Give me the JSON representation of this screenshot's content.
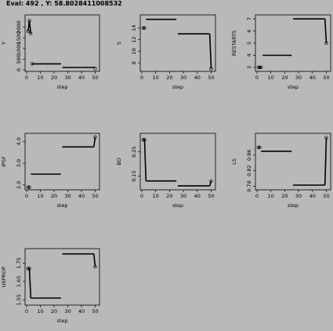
{
  "status_text": "Eval:  492 , Y:  58.8028411008532",
  "chart_data": [
    {
      "type": "scatter",
      "ylabel": "Y",
      "xlabel": "step",
      "xlim": [
        0,
        52
      ],
      "xticks": [
        0,
        10,
        20,
        30,
        40,
        50
      ],
      "ylim": [
        0,
        2500
      ],
      "yticks": [
        0,
        500,
        1000,
        1500,
        2000
      ],
      "ytick_labels": [
        "0",
        "500",
        "1000",
        "1500",
        "2000"
      ],
      "line": true,
      "segments": [
        {
          "x": [
            1,
            2,
            3
          ],
          "y": [
            1800,
            2300,
            1700
          ]
        },
        {
          "x": [
            4,
            25
          ],
          "y": [
            280,
            280
          ]
        },
        {
          "x": [
            26,
            50
          ],
          "y": [
            110,
            110
          ]
        }
      ],
      "points": {
        "x": [
          1,
          2,
          3,
          4,
          50
        ],
        "y": [
          1800,
          2300,
          1700,
          290,
          60
        ]
      }
    },
    {
      "type": "scatter",
      "ylabel": "S",
      "xlabel": "step",
      "xlim": [
        0,
        52
      ],
      "xticks": [
        0,
        10,
        20,
        30,
        40,
        50
      ],
      "ylim": [
        6.8,
        16
      ],
      "yticks": [
        8,
        10,
        12,
        14
      ],
      "ytick_labels": [
        "8",
        "10",
        "12",
        "14"
      ],
      "line": true,
      "segments": [
        {
          "x": [
            1,
            2
          ],
          "y": [
            14,
            14
          ]
        },
        {
          "x": [
            3,
            25
          ],
          "y": [
            15.5,
            15.5
          ]
        },
        {
          "x": [
            26,
            49
          ],
          "y": [
            13,
            13
          ]
        },
        {
          "x": [
            49,
            50
          ],
          "y": [
            13,
            7
          ]
        }
      ],
      "points": {
        "x": [
          1,
          2,
          50
        ],
        "y": [
          14,
          14,
          7
        ]
      }
    },
    {
      "type": "scatter",
      "ylabel": "RESTARTS",
      "xlabel": "step",
      "xlim": [
        0,
        52
      ],
      "xticks": [
        0,
        10,
        20,
        30,
        40,
        50
      ],
      "ylim": [
        2.8,
        7.2
      ],
      "yticks": [
        3,
        4,
        5,
        6,
        7
      ],
      "ytick_labels": [
        "3",
        "4",
        "5",
        "6",
        "7"
      ],
      "line": true,
      "segments": [
        {
          "x": [
            1,
            3
          ],
          "y": [
            3,
            3
          ]
        },
        {
          "x": [
            4,
            25
          ],
          "y": [
            4,
            4
          ]
        },
        {
          "x": [
            26,
            49
          ],
          "y": [
            7,
            7
          ]
        },
        {
          "x": [
            49,
            50
          ],
          "y": [
            7,
            5
          ]
        }
      ],
      "points": {
        "x": [
          1,
          2,
          3,
          50
        ],
        "y": [
          3,
          3,
          3,
          5
        ]
      }
    },
    {
      "type": "scatter",
      "ylabel": "IPSF",
      "xlabel": "step",
      "xlim": [
        0,
        52
      ],
      "xticks": [
        0,
        10,
        20,
        30,
        40,
        50
      ],
      "ylim": [
        1.85,
        4.3
      ],
      "yticks": [
        2.0,
        3.0,
        4.0
      ],
      "ytick_labels": [
        "2.0",
        "3.0",
        "4.0"
      ],
      "line": true,
      "segments": [
        {
          "x": [
            1,
            2
          ],
          "y": [
            1.9,
            1.9
          ]
        },
        {
          "x": [
            3,
            25
          ],
          "y": [
            2.5,
            2.5
          ]
        },
        {
          "x": [
            26,
            49
          ],
          "y": [
            3.75,
            3.75
          ]
        },
        {
          "x": [
            49,
            50
          ],
          "y": [
            3.75,
            4.2
          ]
        }
      ],
      "points": {
        "x": [
          1,
          2,
          50
        ],
        "y": [
          1.9,
          1.9,
          4.2
        ]
      }
    },
    {
      "type": "scatter",
      "ylabel": "BD",
      "xlabel": "step",
      "xlim": [
        0,
        52
      ],
      "xticks": [
        0,
        10,
        20,
        30,
        40,
        50
      ],
      "ylim": [
        0.1,
        0.32
      ],
      "yticks": [
        0.15,
        0.25
      ],
      "ytick_labels": [
        "0.15",
        "0.25"
      ],
      "line": true,
      "segments": [
        {
          "x": [
            1,
            2
          ],
          "y": [
            0.3,
            0.3
          ]
        },
        {
          "x": [
            2,
            3
          ],
          "y": [
            0.3,
            0.13
          ]
        },
        {
          "x": [
            3,
            25
          ],
          "y": [
            0.13,
            0.13
          ]
        },
        {
          "x": [
            26,
            49
          ],
          "y": [
            0.11,
            0.11
          ]
        },
        {
          "x": [
            49,
            50
          ],
          "y": [
            0.11,
            0.13
          ]
        }
      ],
      "points": {
        "x": [
          1,
          2,
          50
        ],
        "y": [
          0.3,
          0.3,
          0.13
        ]
      }
    },
    {
      "type": "scatter",
      "ylabel": "LS",
      "xlabel": "step",
      "xlim": [
        0,
        52
      ],
      "xticks": [
        0,
        10,
        20,
        30,
        40,
        50
      ],
      "ylim": [
        0.775,
        0.912
      ],
      "yticks": [
        0.78,
        0.82,
        0.86
      ],
      "ytick_labels": [
        "0.78",
        "0.82",
        "0.86"
      ],
      "line": true,
      "segments": [
        {
          "x": [
            1,
            2
          ],
          "y": [
            0.88,
            0.88
          ]
        },
        {
          "x": [
            3,
            25
          ],
          "y": [
            0.87,
            0.87
          ]
        },
        {
          "x": [
            26,
            49
          ],
          "y": [
            0.783,
            0.783
          ]
        },
        {
          "x": [
            49,
            50
          ],
          "y": [
            0.783,
            0.905
          ]
        }
      ],
      "points": {
        "x": [
          1,
          2,
          50
        ],
        "y": [
          0.88,
          0.88,
          0.905
        ]
      }
    },
    {
      "type": "scatter",
      "ylabel": "USPROP",
      "xlabel": "step",
      "xlim": [
        0,
        52
      ],
      "xticks": [
        0,
        10,
        20,
        30,
        40,
        50
      ],
      "ylim": [
        1.53,
        1.82
      ],
      "yticks": [
        1.55,
        1.65,
        1.75
      ],
      "ytick_labels": [
        "1.55",
        "1.65",
        "1.75"
      ],
      "line": true,
      "segments": [
        {
          "x": [
            1,
            2
          ],
          "y": [
            1.72,
            1.72
          ]
        },
        {
          "x": [
            2,
            3
          ],
          "y": [
            1.72,
            1.56
          ]
        },
        {
          "x": [
            3,
            25
          ],
          "y": [
            1.56,
            1.56
          ]
        },
        {
          "x": [
            26,
            49
          ],
          "y": [
            1.8,
            1.8
          ]
        },
        {
          "x": [
            49,
            50
          ],
          "y": [
            1.8,
            1.73
          ]
        }
      ],
      "points": {
        "x": [
          1,
          2,
          50
        ],
        "y": [
          1.72,
          1.72,
          1.73
        ]
      }
    }
  ]
}
